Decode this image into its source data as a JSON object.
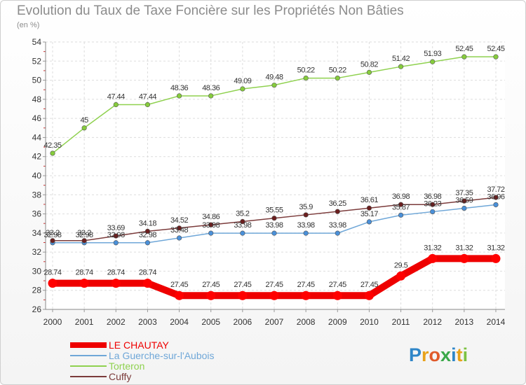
{
  "chart_data": {
    "type": "line",
    "title": "Evolution du Taux de Taxe Foncière sur les Propriétés Non Bâties",
    "subtitle": "(en %)",
    "xlabel": "",
    "ylabel": "",
    "ylim": [
      26,
      54
    ],
    "yticks": [
      26,
      28,
      30,
      32,
      34,
      36,
      38,
      40,
      42,
      44,
      46,
      48,
      50,
      52,
      54
    ],
    "grid": true,
    "legend_position": "bottom-left",
    "x": [
      "2000",
      "2001",
      "2002",
      "2003",
      "2004",
      "2005",
      "2006",
      "2007",
      "2008",
      "2009",
      "2010",
      "2011",
      "2012",
      "2013",
      "2014"
    ],
    "series": [
      {
        "name": "Torteron",
        "color": "#8fd14f",
        "marker_color": "#86cc3c",
        "values": [
          42.35,
          45,
          47.44,
          47.44,
          48.36,
          48.36,
          49.09,
          49.48,
          50.22,
          50.22,
          50.82,
          51.42,
          51.93,
          52.45,
          52.45
        ],
        "labels": [
          "42.35",
          "45",
          "47.44",
          "47.44",
          "48.36",
          "48.36",
          "49.09",
          "49.48",
          "50.22",
          "50.22",
          "50.82",
          "51.42",
          "51.93",
          "52.45",
          "52.45"
        ]
      },
      {
        "name": "La Guerche-sur-l'Aubois",
        "color": "#6fa7d8",
        "marker_color": "#4a90d9",
        "values": [
          32.98,
          32.98,
          32.98,
          32.98,
          33.48,
          33.98,
          33.98,
          33.98,
          33.98,
          33.98,
          35.17,
          35.87,
          36.23,
          36.59,
          36.96
        ],
        "labels": [
          "32.98",
          "32.98",
          "32.98",
          "32.98",
          "33.48",
          "33.98",
          "33.98",
          "33.98",
          "33.98",
          "33.98",
          "35.17",
          "35.87",
          "36.23",
          "36.59",
          "36.96"
        ]
      },
      {
        "name": "Cuffy",
        "color": "#7b3b3b",
        "marker_color": "#6b1f1f",
        "values": [
          33.2,
          33.2,
          33.69,
          34.18,
          34.52,
          34.86,
          35.2,
          35.55,
          35.9,
          36.25,
          36.61,
          36.98,
          36.98,
          37.35,
          37.72
        ],
        "labels": [
          "33.2",
          "33.2",
          "33.69",
          "34.18",
          "34.52",
          "34.86",
          "35.2",
          "35.55",
          "35.9",
          "36.25",
          "36.61",
          "36.98",
          "36.98",
          "37.35",
          "37.72"
        ]
      },
      {
        "name": "LE CHAUTAY",
        "color": "#ee0000",
        "marker_color": "#ff0000",
        "values": [
          28.74,
          28.74,
          28.74,
          28.74,
          27.45,
          27.45,
          27.45,
          27.45,
          27.45,
          27.45,
          27.45,
          29.5,
          31.32,
          31.32,
          31.32
        ],
        "labels": [
          "28.74",
          "28.74",
          "28.74",
          "28.74",
          "27.45",
          "27.45",
          "27.45",
          "27.45",
          "27.45",
          "27.45",
          "27.45",
          "29.5",
          "31.32",
          "31.32",
          "31.32"
        ]
      }
    ],
    "legend_order": [
      "LE CHAUTAY",
      "La Guerche-sur-l'Aubois",
      "Torteron",
      "Cuffy"
    ]
  },
  "logo": {
    "text": "Proxiti",
    "colors": [
      "#2f86c8",
      "#e8a21a",
      "#e05a2a",
      "#3aa84a",
      "#2f86c8",
      "#e8a21a",
      "#7cc242"
    ]
  }
}
